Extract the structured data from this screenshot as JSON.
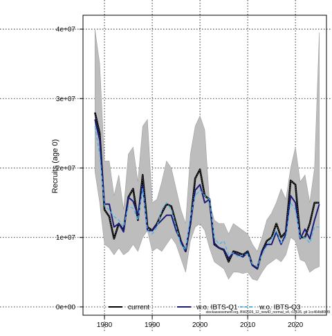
{
  "chart_data": {
    "type": "line",
    "title": "",
    "xlabel": "",
    "ylabel": "Recruits (age 0)",
    "x_ticks": [
      1980,
      1990,
      2000,
      2010,
      2020
    ],
    "x_tick_labels": [
      "1980",
      "1990",
      "2000",
      "2010",
      "2020"
    ],
    "y_ticks": [
      0,
      10000000,
      20000000,
      30000000,
      40000000
    ],
    "y_tick_labels": [
      "0e+00",
      "1e+07",
      "2e+07",
      "3e+07",
      "4e+07"
    ],
    "xlim": [
      1975.5,
      2026.5
    ],
    "ylim": [
      -1200000,
      42000000
    ],
    "grid": true,
    "legend_position": "bottom",
    "footnote": "stockassessment.org, BW2026_12_newID_normal_v4, r19635, git 1cc464b806f9",
    "x": [
      1978,
      1979,
      1980,
      1981,
      1982,
      1983,
      1984,
      1985,
      1986,
      1987,
      1988,
      1989,
      1990,
      1991,
      1992,
      1993,
      1994,
      1995,
      1996,
      1997,
      1998,
      1999,
      2000,
      2001,
      2002,
      2003,
      2004,
      2005,
      2006,
      2007,
      2008,
      2009,
      2010,
      2011,
      2012,
      2013,
      2014,
      2015,
      2016,
      2017,
      2018,
      2019,
      2020,
      2021,
      2022,
      2023,
      2024,
      2025
    ],
    "band": {
      "lower": [
        19500000,
        15000000,
        9000000,
        8500000,
        7500000,
        8500000,
        7500000,
        8000000,
        9000000,
        8000000,
        10000000,
        11000000,
        8000000,
        8500000,
        8000000,
        9000000,
        10000000,
        9000000,
        7000000,
        5000000,
        9500000,
        11500000,
        12000000,
        11000000,
        8500000,
        6500000,
        6000000,
        5500000,
        4000000,
        5000000,
        5000000,
        4800000,
        5000000,
        4000000,
        3800000,
        5000000,
        6000000,
        6500000,
        7000000,
        6500000,
        7500000,
        10000000,
        9500000,
        6800000,
        6500000,
        5000000,
        5500000,
        5800000
      ],
      "upper": [
        40000000,
        35000000,
        21000000,
        21000000,
        16000000,
        19000000,
        14000000,
        22000000,
        23000000,
        18000000,
        26000000,
        27000000,
        15000000,
        15500000,
        18000000,
        21000000,
        20000000,
        17000000,
        14000000,
        12000000,
        22000000,
        26000000,
        27500000,
        25500000,
        15000000,
        12500000,
        12000000,
        12000000,
        10500000,
        12000000,
        11500000,
        11000000,
        10500000,
        9000000,
        8000000,
        10000000,
        12500000,
        13500000,
        15000000,
        17000000,
        15500000,
        20000000,
        23000000,
        18000000,
        19000000,
        15000000,
        20000000,
        39500000
      ]
    },
    "series": [
      {
        "name": "current",
        "color": "#000000",
        "dash": "solid",
        "dotted_overlay": true,
        "values": [
          28000000,
          25000000,
          14000000,
          13000000,
          9800000,
          12000000,
          11000000,
          15800000,
          17000000,
          12500000,
          19000000,
          11500000,
          11000000,
          12000000,
          13500000,
          14800000,
          14500000,
          12000000,
          9500000,
          8000000,
          12000000,
          18500000,
          19800000,
          16000000,
          15500000,
          9000000,
          8500000,
          8200000,
          6500000,
          8000000,
          7800000,
          7500000,
          8000000,
          6000000,
          5500000,
          8000000,
          9500000,
          10000000,
          12000000,
          10000000,
          10800000,
          18200000,
          17600000,
          10000000,
          10000000,
          12000000,
          15000000,
          15000000
        ]
      },
      {
        "name": "w.o. IBTS-Q1",
        "color": "#1a1a7a",
        "dash": "solid",
        "values": [
          27000000,
          24000000,
          14800000,
          14800000,
          11500000,
          12000000,
          10800000,
          15800000,
          15200000,
          13200000,
          17500000,
          11000000,
          11000000,
          11800000,
          12500000,
          13200000,
          13200000,
          11000000,
          9500000,
          8000000,
          12000000,
          16800000,
          17600000,
          15000000,
          15500000,
          9200000,
          8500000,
          8300000,
          7000000,
          7800000,
          7500000,
          7200000,
          7800000,
          6000000,
          5500000,
          8000000,
          9000000,
          9000000,
          10800000,
          9000000,
          10500000,
          16000000,
          15000000,
          9800000,
          11200000,
          9800000,
          12500000,
          14800000
        ]
      },
      {
        "name": "w.o. IBTS-Q3",
        "color": "#4cb3e6",
        "dash": "dashed",
        "values": [
          26000000,
          22000000,
          14500000,
          14000000,
          13000000,
          12500000,
          11500000,
          14500000,
          14200000,
          12500000,
          17000000,
          11000000,
          10500000,
          11500000,
          14000000,
          15000000,
          14000000,
          11500000,
          9000000,
          8200000,
          13000000,
          16000000,
          16800000,
          16000000,
          15500000,
          10000000,
          9000000,
          9500000,
          7500000,
          7800000,
          7200000,
          7500000,
          7600000,
          6200000,
          5800000,
          7500000,
          8800000,
          9800000,
          11000000,
          9200000,
          10000000,
          15000000,
          14000000,
          10000000,
          10000000,
          9200000,
          11500000,
          11500000
        ]
      }
    ]
  }
}
